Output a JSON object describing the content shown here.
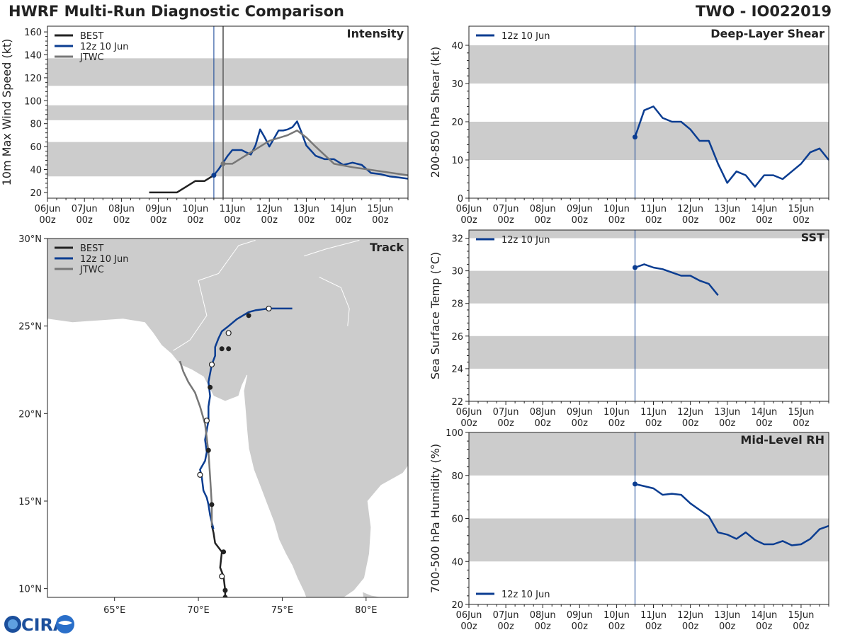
{
  "figure": {
    "title": "HWRF Multi-Run Diagnostic Comparison",
    "storm_id": "TWO - IO022019",
    "logo_text": "CIRA"
  },
  "time_axis": {
    "start": "06Jun 00z",
    "days": [
      "06Jun",
      "07Jun",
      "08Jun",
      "09Jun",
      "10Jun",
      "11Jun",
      "12Jun",
      "13Jun",
      "14Jun",
      "15Jun"
    ],
    "hour": "00z",
    "xmax_days": 9.75,
    "init_line_days": 4.5,
    "jtwc_line_days": 4.75
  },
  "colors": {
    "best": "#222222",
    "hwrf": "#0b3d91",
    "jtwc": "#777777",
    "band": "#cccccc",
    "land": "#cccccc",
    "ocean": "#ffffff"
  },
  "chart_data": [
    {
      "id": "intensity",
      "type": "line",
      "panel_label": "Intensity",
      "ylabel": "10m Max Wind Speed (kt)",
      "ylim": [
        15,
        165
      ],
      "yticks": [
        20,
        40,
        60,
        80,
        100,
        120,
        140,
        160
      ],
      "bands": [
        [
          34,
          64
        ],
        [
          83,
          96
        ],
        [
          113,
          137
        ]
      ],
      "legend": [
        "BEST",
        "12z 10 Jun",
        "JTWC"
      ],
      "series": [
        {
          "name": "BEST",
          "color_key": "best",
          "x": [
            2.75,
            3.0,
            3.25,
            3.5,
            3.75,
            4.0,
            4.25,
            4.5
          ],
          "y": [
            20,
            20,
            20,
            20,
            25,
            30,
            30,
            35
          ]
        },
        {
          "name": "12z 10 Jun",
          "color_key": "hwrf",
          "x": [
            4.5,
            4.625,
            4.75,
            4.875,
            5.0,
            5.125,
            5.25,
            5.375,
            5.5,
            5.625,
            5.75,
            5.875,
            6.0,
            6.125,
            6.25,
            6.375,
            6.5,
            6.625,
            6.75,
            6.875,
            7.0,
            7.25,
            7.5,
            7.75,
            8.0,
            8.25,
            8.5,
            8.75,
            9.0,
            9.25,
            9.5,
            9.75
          ],
          "y": [
            35,
            40,
            46,
            52,
            57,
            57,
            57,
            55,
            53,
            61,
            75,
            68,
            60,
            67,
            74,
            74,
            75,
            77,
            82,
            72,
            61,
            52,
            49,
            49,
            44,
            46,
            44,
            37,
            36,
            34,
            33,
            32
          ]
        },
        {
          "name": "JTWC",
          "color_key": "jtwc",
          "x": [
            4.75,
            5.0,
            5.5,
            6.0,
            6.5,
            6.75,
            7.0,
            7.25,
            7.75,
            8.25,
            9.75
          ],
          "y": [
            45,
            45,
            55,
            65,
            70,
            74,
            68,
            60,
            45,
            42,
            35
          ]
        },
        {
          "name": "init_marker",
          "color_key": "hwrf",
          "x": [
            4.5
          ],
          "y": [
            35
          ]
        },
        {
          "name": "jtwc_marker",
          "color_key": "jtwc",
          "x": [
            4.75
          ],
          "y": [
            45
          ]
        }
      ]
    },
    {
      "id": "shear",
      "type": "line",
      "panel_label": "Deep-Layer Shear",
      "ylabel": "200-850 hPa Shear (kt)",
      "ylim": [
        0,
        45
      ],
      "yticks": [
        0,
        10,
        20,
        30,
        40
      ],
      "bands": [
        [
          10,
          20
        ],
        [
          30,
          40
        ]
      ],
      "legend": [
        "12z 10 Jun"
      ],
      "series": [
        {
          "name": "12z 10 Jun",
          "color_key": "hwrf",
          "x": [
            4.5,
            4.75,
            5.0,
            5.25,
            5.5,
            5.75,
            6.0,
            6.25,
            6.5,
            6.75,
            7.0,
            7.25,
            7.5,
            7.75,
            8.0,
            8.25,
            8.5,
            8.75,
            9.0,
            9.25,
            9.5,
            9.75
          ],
          "y": [
            16,
            23,
            24,
            21,
            20,
            20,
            18,
            15,
            15,
            9,
            4,
            7,
            6,
            3,
            6,
            6,
            5,
            7,
            9,
            12,
            13,
            10
          ]
        },
        {
          "name": "init_marker",
          "color_key": "hwrf",
          "x": [
            4.5
          ],
          "y": [
            16
          ]
        }
      ]
    },
    {
      "id": "sst",
      "type": "line",
      "panel_label": "SST",
      "ylabel": "Sea Surface Temp (°C)",
      "ylim": [
        22,
        32.5
      ],
      "yticks": [
        22,
        24,
        26,
        28,
        30,
        32
      ],
      "bands": [
        [
          24,
          26
        ],
        [
          28,
          30
        ],
        [
          32,
          32.5
        ]
      ],
      "legend": [
        "12z 10 Jun"
      ],
      "series": [
        {
          "name": "12z 10 Jun",
          "color_key": "hwrf",
          "x": [
            4.5,
            4.75,
            5.0,
            5.25,
            5.5,
            5.75,
            6.0,
            6.25,
            6.5,
            6.75
          ],
          "y": [
            30.2,
            30.4,
            30.2,
            30.1,
            29.9,
            29.7,
            29.7,
            29.4,
            29.2,
            28.5
          ]
        },
        {
          "name": "init_marker",
          "color_key": "hwrf",
          "x": [
            4.5
          ],
          "y": [
            30.2
          ]
        }
      ]
    },
    {
      "id": "rh",
      "type": "line",
      "panel_label": "Mid-Level RH",
      "ylabel": "700-500 hPa Humidity (%)",
      "ylim": [
        20,
        100
      ],
      "yticks": [
        20,
        40,
        60,
        80,
        100
      ],
      "bands": [
        [
          40,
          60
        ],
        [
          80,
          100
        ]
      ],
      "legend": [
        "12z 10 Jun"
      ],
      "series": [
        {
          "name": "12z 10 Jun",
          "color_key": "hwrf",
          "x": [
            4.5,
            4.75,
            5.0,
            5.25,
            5.5,
            5.75,
            6.0,
            6.25,
            6.5,
            6.75,
            7.0,
            7.25,
            7.5,
            7.75,
            8.0,
            8.25,
            8.5,
            8.75,
            9.0,
            9.25,
            9.5,
            9.75
          ],
          "y": [
            76,
            75,
            74,
            71,
            71.5,
            71,
            67,
            64,
            61,
            53.5,
            52.5,
            50.5,
            53.5,
            50,
            48,
            48,
            49.5,
            47.5,
            48,
            50.5,
            55,
            56.5
          ]
        },
        {
          "name": "init_marker",
          "color_key": "hwrf",
          "x": [
            4.5
          ],
          "y": [
            76
          ]
        }
      ]
    },
    {
      "id": "track",
      "type": "scatter",
      "panel_label": "Track",
      "xlim": [
        61,
        82.5
      ],
      "ylim": [
        9.5,
        30
      ],
      "xticks": [
        65,
        70,
        75,
        80
      ],
      "xtick_labels": [
        "65°E",
        "70°E",
        "75°E",
        "80°E"
      ],
      "yticks": [
        10,
        15,
        20,
        25,
        30
      ],
      "ytick_labels": [
        "10°N",
        "15°N",
        "20°N",
        "25°N",
        "30°N"
      ],
      "legend": [
        "BEST",
        "12z 10 Jun",
        "JTWC"
      ],
      "series": [
        {
          "name": "BEST",
          "color_key": "best",
          "lon": [
            71.6,
            71.6,
            71.5,
            71.3,
            71.4,
            71.0,
            70.9,
            70.8
          ],
          "lat": [
            9.6,
            9.9,
            10.7,
            11.2,
            12.1,
            12.6,
            13.2,
            13.6
          ]
        },
        {
          "name": "12z 10 Jun",
          "color_key": "hwrf",
          "lon": [
            70.9,
            70.8,
            70.7,
            70.6,
            70.5,
            70.3,
            70.2,
            70.1,
            70.4,
            70.5,
            70.4,
            70.6,
            70.6,
            70.7,
            70.6,
            70.8,
            71.0,
            71.0,
            71.2,
            71.4,
            71.8,
            72.3,
            73.0,
            73.4,
            74.2,
            75.6
          ],
          "lat": [
            13.4,
            13.8,
            14.2,
            14.8,
            15.2,
            15.6,
            16.4,
            16.8,
            17.3,
            17.8,
            18.5,
            19.6,
            20.4,
            21.0,
            21.8,
            22.8,
            23.3,
            23.8,
            24.3,
            24.7,
            25.0,
            25.4,
            25.8,
            25.9,
            26.0,
            26.0
          ]
        },
        {
          "name": "JTWC",
          "color_key": "jtwc",
          "lon": [
            70.8,
            70.8,
            70.7,
            70.6,
            70.4,
            70.1,
            69.8,
            69.4,
            69.1,
            68.9
          ],
          "lat": [
            13.6,
            14.8,
            16.4,
            17.8,
            19.4,
            20.4,
            21.2,
            21.8,
            22.4,
            23.0
          ]
        },
        {
          "name": "filled_markers",
          "color_key": "best",
          "lon": [
            71.6,
            71.6,
            71.5,
            70.8,
            70.6,
            70.7,
            71.4,
            71.8,
            73.0
          ],
          "lat": [
            9.5,
            9.9,
            12.1,
            14.8,
            17.9,
            21.5,
            23.7,
            23.7,
            25.6
          ]
        },
        {
          "name": "open_markers",
          "color_key": "best",
          "lon": [
            71.4,
            70.1,
            70.5,
            70.8,
            71.8,
            74.2
          ],
          "lat": [
            10.7,
            16.5,
            19.6,
            22.8,
            24.6,
            26.0
          ]
        }
      ]
    }
  ]
}
